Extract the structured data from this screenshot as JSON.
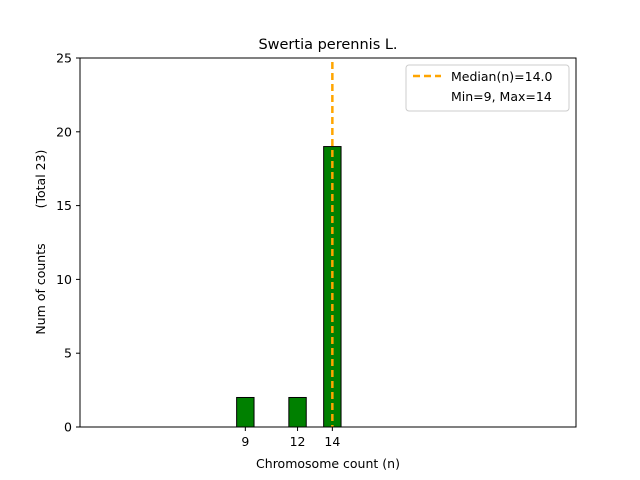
{
  "chart_data": {
    "type": "bar",
    "title": "Swertia perennis L.",
    "xlabel": "Chromosome count (n)",
    "ylabel": "Num of counts",
    "ylabel_total": "(Total 23)",
    "x": [
      9,
      12,
      14
    ],
    "values": [
      2,
      2,
      19
    ],
    "xlim": [
      -0.5,
      28
    ],
    "ylim": [
      0,
      25
    ],
    "x_ticks": [
      9,
      12,
      14
    ],
    "y_ticks": [
      0,
      5,
      10,
      15,
      20,
      25
    ],
    "bar_color": "#008000",
    "bar_edge_color": "#000000",
    "median": 14.0,
    "median_color": "#FFA500",
    "legend": {
      "position": "top-right",
      "entries": [
        "Median(n)=14.0",
        "Min=9, Max=14"
      ]
    },
    "baseline_extends_to": 17.5
  }
}
